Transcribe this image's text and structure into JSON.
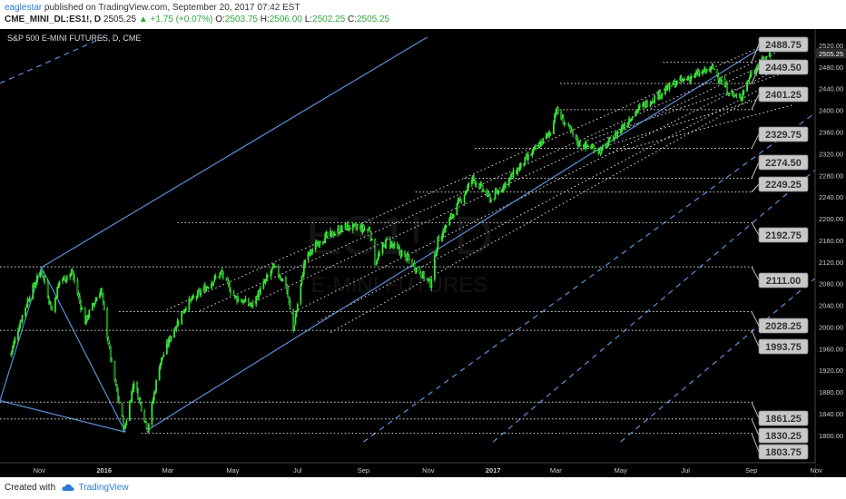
{
  "header": {
    "author": "eaglestar",
    "published_text": "published on TradingView.com, September 20, 2017 07:42 EST",
    "symbol": "CME_MINI_DL:ES1!, D",
    "last": "2505.25",
    "change": "▲ +1.75 (+0.07%)",
    "o_label": "O:",
    "o_value": "2503.75",
    "h_label": "H:",
    "h_value": "2506.00",
    "l_label": "L:",
    "l_value": "2502.25",
    "c_label": "C:",
    "c_value": "2505.25"
  },
  "chart_title": "S&P 500 E-MINI FUTURES, D, CME",
  "watermark": {
    "symbol": "ES1!, D",
    "name": "E-MINI FUTURES"
  },
  "footer": {
    "created_with": "Created with",
    "brand": "TradingView"
  },
  "colors": {
    "background": "#000000",
    "candle": "#39e639",
    "pitchfork": "#5b8fdc",
    "dotted": "#dddddd",
    "label_bg": "#c8c8c8"
  },
  "chart_data": {
    "type": "candlestick",
    "x_ticks": [
      "Nov",
      "2016",
      "Mar",
      "May",
      "Jul",
      "Sep",
      "Nov",
      "2017",
      "Mar",
      "May",
      "Jul",
      "Sep",
      "Nov"
    ],
    "y_ticks": [
      "2520.00",
      "2505.25",
      "2480.00",
      "2440.00",
      "2400.00",
      "2360.00",
      "2320.00",
      "2280.00",
      "2240.00",
      "2200.00",
      "2160.00",
      "2120.00",
      "2080.00",
      "2040.00",
      "2000.00",
      "1960.00",
      "1920.00",
      "1880.00",
      "1840.00",
      "1800.00"
    ],
    "ylim": [
      1788,
      2530
    ],
    "price_path": [
      [
        "2015-10-05",
        1950
      ],
      [
        "2015-10-14",
        2010
      ],
      [
        "2015-10-23",
        2060
      ],
      [
        "2015-11-03",
        2105
      ],
      [
        "2015-11-13",
        2030
      ],
      [
        "2015-11-20",
        2085
      ],
      [
        "2015-12-02",
        2100
      ],
      [
        "2015-12-14",
        2010
      ],
      [
        "2015-12-29",
        2070
      ],
      [
        "2016-01-08",
        1930
      ],
      [
        "2016-01-20",
        1810
      ],
      [
        "2016-01-29",
        1900
      ],
      [
        "2016-02-11",
        1812
      ],
      [
        "2016-02-22",
        1930
      ],
      [
        "2016-03-04",
        1985
      ],
      [
        "2016-03-18",
        2040
      ],
      [
        "2016-04-01",
        2065
      ],
      [
        "2016-04-20",
        2100
      ],
      [
        "2016-05-03",
        2055
      ],
      [
        "2016-05-19",
        2040
      ],
      [
        "2016-06-08",
        2110
      ],
      [
        "2016-06-20",
        2080
      ],
      [
        "2016-06-27",
        1995
      ],
      [
        "2016-07-08",
        2125
      ],
      [
        "2016-07-22",
        2160
      ],
      [
        "2016-08-15",
        2185
      ],
      [
        "2016-09-07",
        2180
      ],
      [
        "2016-09-12",
        2120
      ],
      [
        "2016-09-23",
        2160
      ],
      [
        "2016-10-13",
        2125
      ],
      [
        "2016-11-03",
        2080
      ],
      [
        "2016-11-10",
        2160
      ],
      [
        "2016-12-13",
        2275
      ],
      [
        "2016-12-30",
        2235
      ],
      [
        "2017-01-26",
        2295
      ],
      [
        "2017-02-24",
        2360
      ],
      [
        "2017-03-01",
        2401
      ],
      [
        "2017-03-22",
        2340
      ],
      [
        "2017-04-13",
        2325
      ],
      [
        "2017-05-16",
        2400
      ],
      [
        "2017-06-19",
        2448
      ],
      [
        "2017-07-27",
        2478
      ],
      [
        "2017-08-10",
        2435
      ],
      [
        "2017-08-21",
        2420
      ],
      [
        "2017-09-01",
        2470
      ],
      [
        "2017-09-19",
        2505
      ]
    ],
    "horizontal_levels": [
      {
        "label": "2488.75",
        "value": 2488.75
      },
      {
        "label": "2449.50",
        "value": 2449.5
      },
      {
        "label": "2401.25",
        "value": 2401.25
      },
      {
        "label": "2329.75",
        "value": 2329.75
      },
      {
        "label": "2274.50",
        "value": 2274.5
      },
      {
        "label": "2249.25",
        "value": 2249.25
      },
      {
        "label": "2192.75",
        "value": 2192.75
      },
      {
        "label": "2111.00",
        "value": 2111.0
      },
      {
        "label": "2028.25",
        "value": 2028.25
      },
      {
        "label": "1993.75",
        "value": 1993.75
      },
      {
        "label": "1861.25",
        "value": 1861.25
      },
      {
        "label": "1830.25",
        "value": 1830.25
      },
      {
        "label": "1803.75",
        "value": 1803.75
      }
    ],
    "last_price": "2505.25",
    "pitchfork": {
      "solid_lines": [
        [
          [
            "2015-09-25",
            1864
          ],
          [
            "2016-01-21",
            1806
          ]
        ],
        [
          [
            "2016-01-21",
            1806
          ],
          [
            "2015-11-03",
            2110
          ]
        ],
        [
          [
            "2015-09-25",
            1864
          ],
          [
            "2015-11-03",
            2110
          ]
        ],
        [
          [
            "2015-11-03",
            2110
          ],
          [
            "2016-10-31",
            2535
          ]
        ],
        [
          [
            "2016-02-11",
            1810
          ],
          [
            "2017-09-22",
            2530
          ]
        ]
      ],
      "dashed_lines": [
        [
          [
            "2015-09-25",
            2450
          ],
          [
            "2016-01-01",
            2535
          ]
        ],
        [
          [
            "2016-09-01",
            1788
          ],
          [
            "2017-10-31",
            2395
          ]
        ],
        [
          [
            "2017-01-01",
            1788
          ],
          [
            "2017-10-31",
            2290
          ]
        ],
        [
          [
            "2017-05-01",
            1788
          ],
          [
            "2017-10-31",
            2090
          ]
        ]
      ],
      "dotted_lines": [
        [
          [
            "2016-02-29",
            2032
          ],
          [
            "2017-09-30",
            2535
          ]
        ],
        [
          [
            "2016-03-31",
            2030
          ],
          [
            "2017-09-30",
            2512
          ]
        ],
        [
          [
            "2016-05-15",
            2040
          ],
          [
            "2017-09-25",
            2495
          ]
        ],
        [
          [
            "2016-06-25",
            2025
          ],
          [
            "2017-09-20",
            2470
          ]
        ],
        [
          [
            "2016-07-20",
            2010
          ],
          [
            "2017-09-10",
            2440
          ]
        ],
        [
          [
            "2016-08-01",
            1990
          ],
          [
            "2017-08-31",
            2420
          ]
        ],
        [
          [
            "2017-03-31",
            2345
          ],
          [
            "2017-10-10",
            2475
          ]
        ],
        [
          [
            "2017-04-10",
            2330
          ],
          [
            "2017-10-10",
            2440
          ]
        ],
        [
          [
            "2017-04-20",
            2320
          ],
          [
            "2017-10-10",
            2410
          ]
        ]
      ]
    }
  }
}
